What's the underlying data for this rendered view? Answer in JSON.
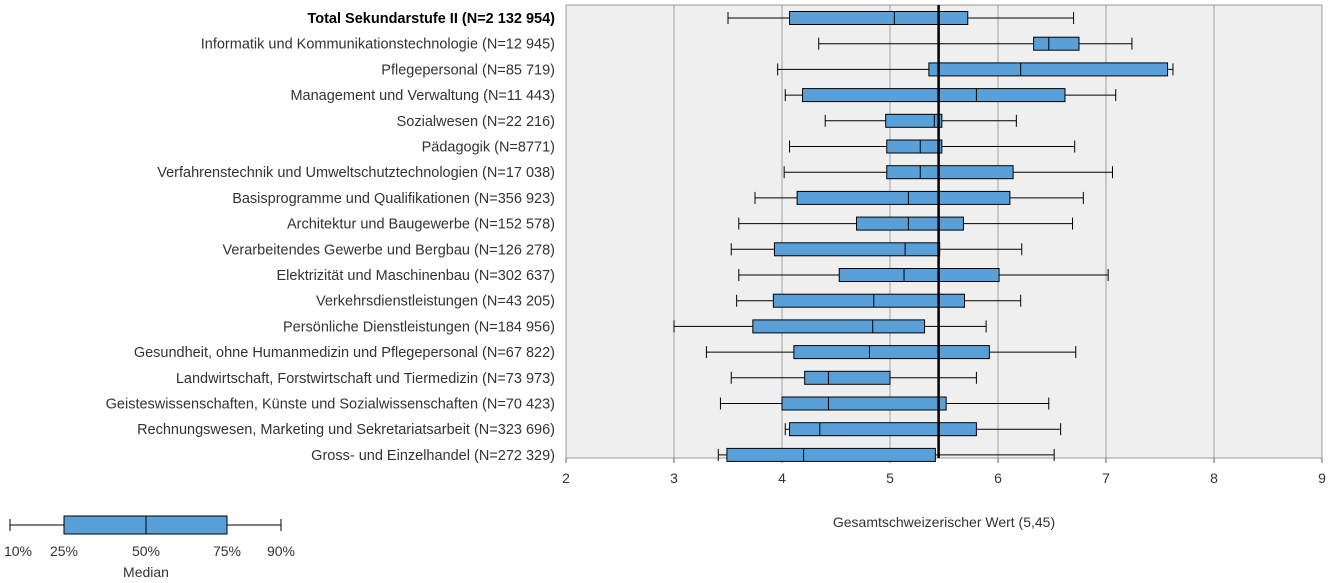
{
  "chart_data": {
    "type": "boxplot",
    "orientation": "horizontal",
    "title": "",
    "xlim": [
      2,
      9
    ],
    "x_ticks": [
      "2",
      "3",
      "4",
      "5",
      "6",
      "7",
      "8",
      "9"
    ],
    "reference_value": 5.45,
    "reference_label": "Gesamtschweizerischer Wert (5,45)",
    "grid": true,
    "colors": {
      "box": "#5aa0d8",
      "plot_bg": "#efefef",
      "grid": "#a0a0a0",
      "line": "#000000"
    },
    "categories": [
      {
        "label": "Total Sekundarstufe II (N=2 132 954)",
        "bold": true,
        "p10": 3.5,
        "p25": 4.07,
        "median": 5.04,
        "p75": 5.72,
        "p90": 6.7
      },
      {
        "label": "Informatik und Kommunikationstechnologie (N=12 945)",
        "p10": 4.34,
        "p25": 6.33,
        "median": 6.47,
        "p75": 6.75,
        "p90": 7.24
      },
      {
        "label": "Pflegepersonal (N=85 719)",
        "p10": 3.96,
        "p25": 5.36,
        "median": 6.21,
        "p75": 7.57,
        "p90": 7.62
      },
      {
        "label": "Management und Verwaltung (N=11 443)",
        "p10": 4.03,
        "p25": 4.19,
        "median": 5.8,
        "p75": 6.62,
        "p90": 7.09
      },
      {
        "label": "Sozialwesen (N=22 216)",
        "p10": 4.4,
        "p25": 4.96,
        "median": 5.41,
        "p75": 5.48,
        "p90": 6.17
      },
      {
        "label": "Pädagogik (N=8771)",
        "p10": 4.07,
        "p25": 4.97,
        "median": 5.28,
        "p75": 5.48,
        "p90": 6.71
      },
      {
        "label": "Verfahrenstechnik und Umweltschutztechnologien (N=17 038)",
        "p10": 4.02,
        "p25": 4.97,
        "median": 5.28,
        "p75": 6.14,
        "p90": 7.06
      },
      {
        "label": "Basisprogramme und Qualifikationen (N=356 923)",
        "p10": 3.75,
        "p25": 4.14,
        "median": 5.17,
        "p75": 6.11,
        "p90": 6.79
      },
      {
        "label": "Architektur und Baugewerbe (N=152 578)",
        "p10": 3.6,
        "p25": 4.69,
        "median": 5.17,
        "p75": 5.68,
        "p90": 6.69
      },
      {
        "label": "Verarbeitendes Gewerbe und Bergbau (N=126 278)",
        "p10": 3.53,
        "p25": 3.93,
        "median": 5.14,
        "p75": 5.46,
        "p90": 6.22
      },
      {
        "label": "Elektrizität und Maschinenbau (N=302 637)",
        "p10": 3.6,
        "p25": 4.53,
        "median": 5.13,
        "p75": 6.01,
        "p90": 7.02
      },
      {
        "label": "Verkehrsdienstleistungen (N=43 205)",
        "p10": 3.58,
        "p25": 3.92,
        "median": 4.85,
        "p75": 5.69,
        "p90": 6.21
      },
      {
        "label": "Persönliche Dienstleistungen (N=184 956)",
        "p10": 3.0,
        "p25": 3.73,
        "median": 4.84,
        "p75": 5.32,
        "p90": 5.89
      },
      {
        "label": "Gesundheit, ohne Humanmedizin und Pflegepersonal (N=67 822)",
        "p10": 3.3,
        "p25": 4.11,
        "median": 4.81,
        "p75": 5.92,
        "p90": 6.72
      },
      {
        "label": "Landwirtschaft, Forstwirtschaft und Tiermedizin (N=73 973)",
        "p10": 3.53,
        "p25": 4.21,
        "median": 4.43,
        "p75": 5.0,
        "p90": 5.8
      },
      {
        "label": "Geisteswissenschaften, Künste und Sozialwissenschaften (N=70 423)",
        "p10": 3.43,
        "p25": 4.0,
        "median": 4.43,
        "p75": 5.52,
        "p90": 6.47
      },
      {
        "label": "Rechnungswesen, Marketing und Sekretariatsarbeit (N=323 696)",
        "p10": 4.03,
        "p25": 4.07,
        "median": 4.35,
        "p75": 5.8,
        "p90": 6.58
      },
      {
        "label": "Gross- und Einzelhandel (N=272 329)",
        "p10": 3.41,
        "p25": 3.49,
        "median": 4.2,
        "p75": 5.42,
        "p90": 6.52
      }
    ],
    "legend": {
      "labels": [
        "10%",
        "25%",
        "50%",
        "75%",
        "90%"
      ],
      "median_label": "Median"
    }
  }
}
